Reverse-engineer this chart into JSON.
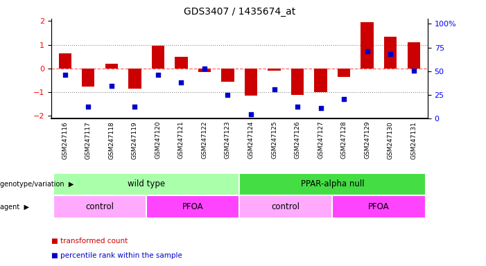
{
  "title": "GDS3407 / 1435674_at",
  "samples": [
    "GSM247116",
    "GSM247117",
    "GSM247118",
    "GSM247119",
    "GSM247120",
    "GSM247121",
    "GSM247122",
    "GSM247123",
    "GSM247124",
    "GSM247125",
    "GSM247126",
    "GSM247127",
    "GSM247128",
    "GSM247129",
    "GSM247130",
    "GSM247131"
  ],
  "bar_values": [
    0.65,
    -0.75,
    0.2,
    -0.85,
    0.95,
    0.5,
    -0.15,
    -0.55,
    -1.15,
    -0.08,
    -1.1,
    -1.0,
    -0.35,
    1.95,
    1.35,
    1.1
  ],
  "dot_values": [
    43,
    10,
    32,
    10,
    43,
    35,
    50,
    22,
    2,
    28,
    10,
    8,
    18,
    68,
    65,
    48
  ],
  "bar_color": "#cc0000",
  "dot_color": "#0000cc",
  "ylim": [
    -2.1,
    2.1
  ],
  "yticks_left": [
    -2,
    -1,
    0,
    1,
    2
  ],
  "yticks_right": [
    0,
    25,
    50,
    75,
    100
  ],
  "hline_zero_color": "#ff6666",
  "hline_dotted_color": "#888888",
  "background_plot": "#ffffff",
  "genotype_groups": [
    {
      "label": "wild type",
      "start": 0,
      "end": 8,
      "color": "#aaffaa"
    },
    {
      "label": "PPAR-alpha null",
      "start": 8,
      "end": 16,
      "color": "#44dd44"
    }
  ],
  "agent_groups": [
    {
      "label": "control",
      "start": 0,
      "end": 4,
      "color": "#ffaaff"
    },
    {
      "label": "PFOA",
      "start": 4,
      "end": 8,
      "color": "#ff44ff"
    },
    {
      "label": "control",
      "start": 8,
      "end": 12,
      "color": "#ffaaff"
    },
    {
      "label": "PFOA",
      "start": 12,
      "end": 16,
      "color": "#ff44ff"
    }
  ],
  "legend_items": [
    {
      "label": "transformed count",
      "color": "#cc0000"
    },
    {
      "label": "percentile rank within the sample",
      "color": "#0000cc"
    }
  ],
  "label_genotype": "genotype/variation",
  "label_agent": "agent"
}
